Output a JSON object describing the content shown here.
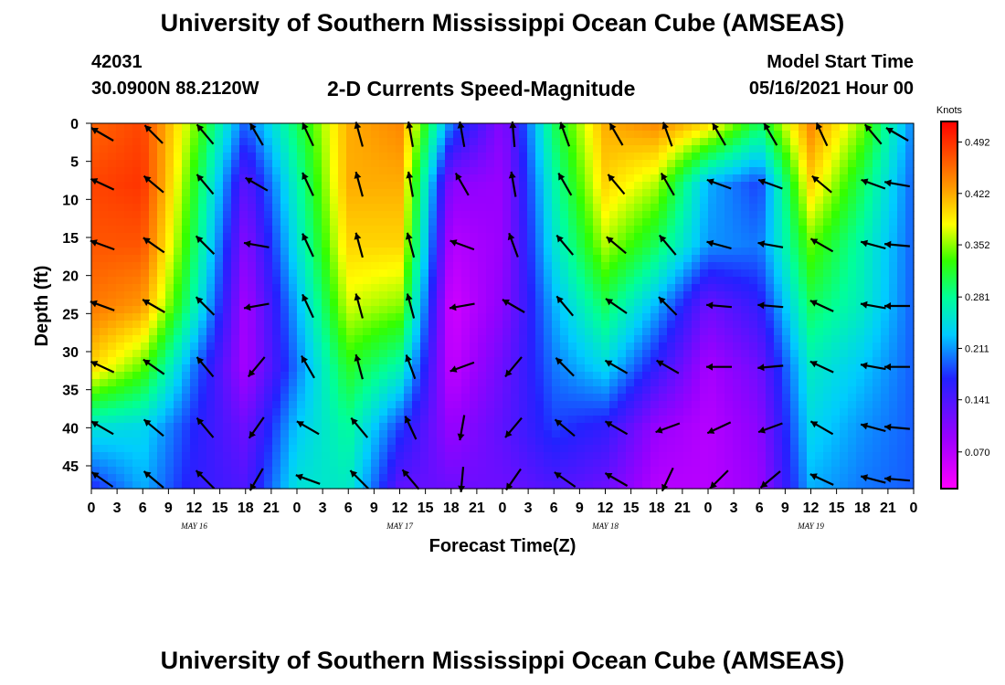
{
  "header": {
    "title": "University of Southern Mississippi Ocean Cube (AMSEAS)",
    "station": "42031",
    "coords": "30.0900N  88.2120W",
    "chart_title": "2-D Currents Speed-Magnitude",
    "start_label": "Model Start Time",
    "start_value": "05/16/2021 Hour 00"
  },
  "footer": {
    "title": "University of Southern Mississippi Ocean Cube (AMSEAS)"
  },
  "chart_data": {
    "type": "heatmap",
    "title": "2-D Currents Speed-Magnitude",
    "xlabel": "Forecast Time(Z)",
    "ylabel": "Depth (ft)",
    "x_ticks": [
      "0",
      "3",
      "6",
      "9",
      "12",
      "15",
      "18",
      "21",
      "0",
      "3",
      "6",
      "9",
      "12",
      "15",
      "18",
      "21",
      "0",
      "3",
      "6",
      "9",
      "12",
      "15",
      "18",
      "21",
      "0",
      "3",
      "6",
      "9",
      "12",
      "15",
      "18",
      "21",
      "0"
    ],
    "day_labels": [
      "MAY 16",
      "MAY 17",
      "MAY 18",
      "MAY 19"
    ],
    "y_ticks": [
      0,
      5,
      10,
      15,
      20,
      25,
      30,
      35,
      40,
      45
    ],
    "ylim": [
      0,
      48
    ],
    "colorbar": {
      "unit": "Knots",
      "ticks": [
        "0.492",
        "0.422",
        "0.352",
        "0.281",
        "0.211",
        "0.141",
        "0.070"
      ]
    },
    "columns_hours": [
      0,
      6,
      12,
      18,
      24,
      30,
      36,
      42,
      48,
      54,
      60,
      66,
      72,
      78,
      84,
      90,
      96
    ],
    "depths_ft": [
      0,
      8,
      16,
      24,
      32,
      40,
      48
    ],
    "speed_knots": [
      [
        0.46,
        0.48,
        0.35,
        0.19,
        0.3,
        0.42,
        0.44,
        0.2,
        0.1,
        0.3,
        0.42,
        0.44,
        0.4,
        0.3,
        0.44,
        0.35,
        0.2
      ],
      [
        0.48,
        0.49,
        0.32,
        0.13,
        0.27,
        0.42,
        0.42,
        0.1,
        0.09,
        0.27,
        0.4,
        0.36,
        0.22,
        0.18,
        0.4,
        0.3,
        0.19
      ],
      [
        0.47,
        0.47,
        0.3,
        0.1,
        0.25,
        0.4,
        0.4,
        0.07,
        0.09,
        0.25,
        0.36,
        0.3,
        0.21,
        0.2,
        0.34,
        0.27,
        0.19
      ],
      [
        0.45,
        0.43,
        0.27,
        0.08,
        0.22,
        0.37,
        0.35,
        0.05,
        0.1,
        0.22,
        0.3,
        0.22,
        0.12,
        0.16,
        0.3,
        0.26,
        0.19
      ],
      [
        0.4,
        0.34,
        0.2,
        0.08,
        0.2,
        0.32,
        0.27,
        0.06,
        0.12,
        0.2,
        0.24,
        0.16,
        0.08,
        0.12,
        0.26,
        0.23,
        0.19
      ],
      [
        0.25,
        0.24,
        0.17,
        0.12,
        0.23,
        0.28,
        0.18,
        0.09,
        0.13,
        0.18,
        0.16,
        0.09,
        0.07,
        0.1,
        0.24,
        0.21,
        0.19
      ],
      [
        0.17,
        0.22,
        0.16,
        0.14,
        0.25,
        0.26,
        0.13,
        0.12,
        0.12,
        0.14,
        0.12,
        0.07,
        0.07,
        0.09,
        0.22,
        0.2,
        0.19
      ]
    ],
    "vector_dir_deg": [
      [
        300,
        315,
        320,
        330,
        335,
        345,
        350,
        350,
        355,
        340,
        330,
        340,
        330,
        330,
        335,
        320,
        300
      ],
      [
        295,
        310,
        320,
        300,
        335,
        345,
        350,
        330,
        350,
        330,
        320,
        330,
        290,
        290,
        310,
        290,
        280
      ],
      [
        290,
        305,
        315,
        280,
        335,
        345,
        345,
        290,
        340,
        320,
        310,
        320,
        285,
        280,
        300,
        285,
        275
      ],
      [
        290,
        300,
        315,
        260,
        335,
        345,
        345,
        260,
        300,
        320,
        305,
        315,
        275,
        275,
        295,
        280,
        270
      ],
      [
        295,
        305,
        320,
        220,
        330,
        345,
        340,
        250,
        220,
        315,
        300,
        300,
        270,
        265,
        295,
        280,
        270
      ],
      [
        300,
        310,
        320,
        215,
        300,
        320,
        335,
        190,
        220,
        310,
        300,
        250,
        245,
        250,
        300,
        285,
        275
      ],
      [
        305,
        310,
        315,
        210,
        290,
        315,
        320,
        185,
        215,
        305,
        300,
        205,
        225,
        230,
        295,
        285,
        275
      ]
    ]
  }
}
